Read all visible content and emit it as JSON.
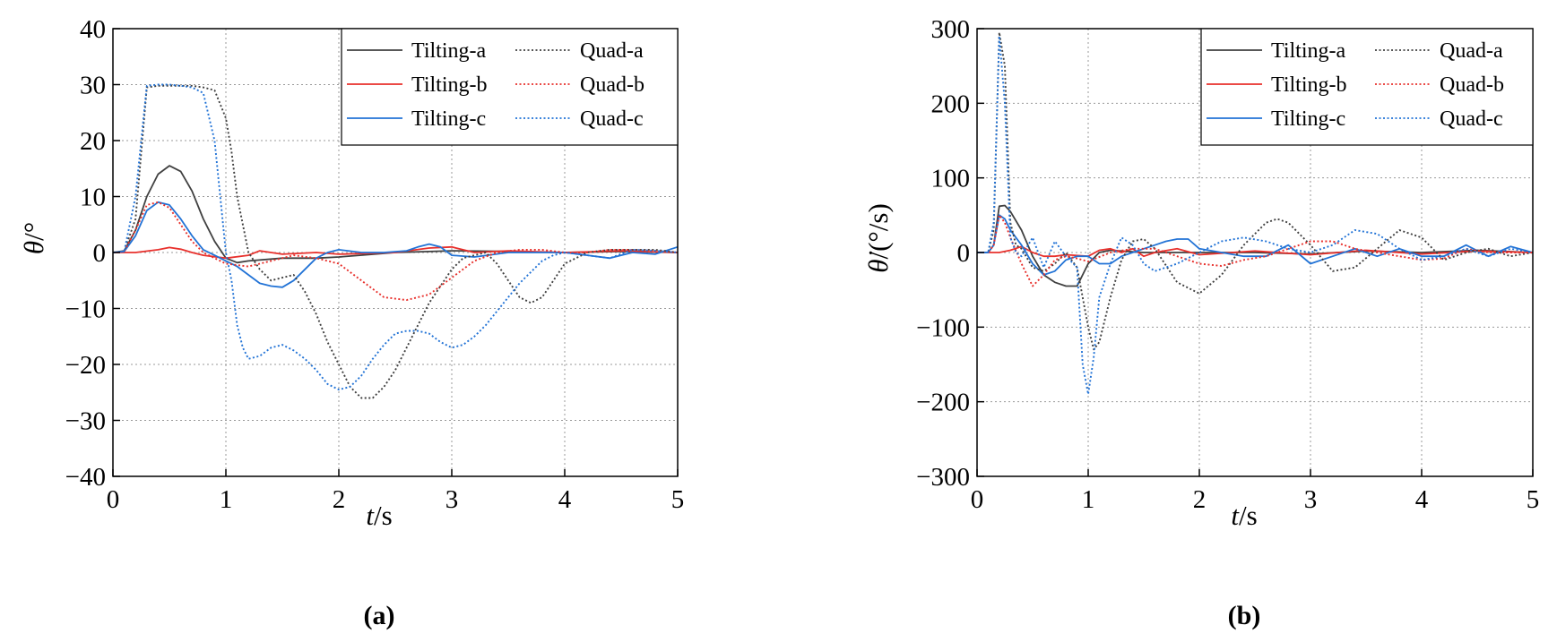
{
  "chart_data": [
    {
      "type": "line",
      "panel_label": "(a)",
      "xlabel_italic": "t",
      "xlabel_unit": "/s",
      "ylabel_italic": "θ",
      "ylabel_unit": "/°",
      "xlim": [
        0,
        5
      ],
      "ylim": [
        -40,
        40
      ],
      "xticks": [
        0,
        1,
        2,
        3,
        4,
        5
      ],
      "yticks": [
        -40,
        -30,
        -20,
        -10,
        0,
        10,
        20,
        30,
        40
      ],
      "ytick_labels": [
        "−40",
        "−30",
        "−20",
        "−10",
        "0",
        "10",
        "20",
        "30",
        "40"
      ],
      "grid": true,
      "legend_position": "top-right",
      "series": [
        {
          "name": "Tilting-a",
          "color": "#404040",
          "dash": "solid",
          "x": [
            0,
            0.1,
            0.2,
            0.3,
            0.4,
            0.5,
            0.6,
            0.7,
            0.8,
            0.9,
            1.0,
            1.1,
            1.2,
            1.5,
            1.8,
            2.0,
            2.5,
            3.0,
            3.5,
            4.0,
            4.5,
            5.0
          ],
          "y": [
            0,
            0.3,
            4,
            10,
            14,
            15.5,
            14.5,
            11,
            6,
            2,
            -1,
            -1.8,
            -1.5,
            -1,
            -1,
            -0.8,
            0,
            0.3,
            0.2,
            0,
            0.2,
            0
          ]
        },
        {
          "name": "Tilting-b",
          "color": "#e8302c",
          "dash": "solid",
          "x": [
            0,
            0.2,
            0.4,
            0.5,
            0.6,
            0.7,
            0.8,
            1.0,
            1.2,
            1.3,
            1.5,
            1.8,
            2.0,
            2.5,
            2.8,
            3.0,
            3.2,
            3.5,
            4.0,
            4.5,
            5.0
          ],
          "y": [
            0,
            0,
            0.5,
            0.9,
            0.6,
            0,
            -0.5,
            -1,
            -0.5,
            0.3,
            -0.3,
            0,
            -0.3,
            0,
            0.8,
            1,
            0,
            0.3,
            0,
            0.3,
            0
          ]
        },
        {
          "name": "Tilting-c",
          "color": "#2273d6",
          "dash": "solid",
          "x": [
            0,
            0.1,
            0.2,
            0.3,
            0.4,
            0.5,
            0.6,
            0.7,
            0.8,
            0.9,
            1.0,
            1.1,
            1.2,
            1.3,
            1.4,
            1.5,
            1.6,
            1.7,
            1.8,
            1.9,
            2.0,
            2.2,
            2.4,
            2.6,
            2.7,
            2.8,
            2.9,
            3.0,
            3.2,
            3.5,
            3.8,
            4.0,
            4.2,
            4.4,
            4.6,
            4.8,
            5.0
          ],
          "y": [
            0,
            0.2,
            3,
            7.5,
            9,
            8.5,
            6,
            3,
            0.5,
            -0.5,
            -1.5,
            -2.5,
            -4,
            -5.5,
            -6,
            -6.2,
            -5,
            -3,
            -1,
            0,
            0.5,
            0,
            0,
            0.3,
            1,
            1.5,
            1,
            -0.5,
            -0.8,
            0,
            0,
            0,
            -0.5,
            -1,
            0,
            -0.3,
            1
          ]
        },
        {
          "name": "Quad-a",
          "color": "#404040",
          "dash": "dot",
          "x": [
            0,
            0.1,
            0.2,
            0.3,
            0.4,
            0.5,
            0.6,
            0.7,
            0.8,
            0.9,
            1.0,
            1.05,
            1.1,
            1.2,
            1.3,
            1.4,
            1.5,
            1.6,
            1.7,
            1.8,
            1.9,
            2.0,
            2.1,
            2.2,
            2.3,
            2.4,
            2.5,
            2.6,
            2.7,
            2.8,
            2.9,
            3.0,
            3.1,
            3.2,
            3.3,
            3.4,
            3.5,
            3.6,
            3.7,
            3.8,
            3.9,
            4.0,
            4.2,
            4.4,
            4.6,
            4.8,
            5.0
          ],
          "y": [
            0,
            0.2,
            6,
            29.5,
            29.8,
            29.8,
            29.8,
            29.8,
            29.5,
            29,
            24,
            18,
            10,
            0,
            -3,
            -5,
            -4.5,
            -4,
            -7,
            -11,
            -16,
            -20,
            -24,
            -26,
            -26,
            -24,
            -21,
            -17,
            -13,
            -9,
            -6,
            -3,
            -1,
            -0.5,
            0,
            -2,
            -5,
            -8,
            -9,
            -8,
            -5,
            -2,
            0,
            0.5,
            0.5,
            0.5,
            0
          ]
        },
        {
          "name": "Quad-b",
          "color": "#e8302c",
          "dash": "dot",
          "x": [
            0,
            0.1,
            0.2,
            0.3,
            0.4,
            0.5,
            0.6,
            0.7,
            0.8,
            0.9,
            1.0,
            1.2,
            1.4,
            1.6,
            1.8,
            2.0,
            2.2,
            2.4,
            2.6,
            2.8,
            3.0,
            3.2,
            3.4,
            3.6,
            3.8,
            4.0,
            4.2,
            4.4,
            4.6,
            4.8,
            5.0
          ],
          "y": [
            0,
            0.2,
            4,
            8.5,
            9,
            8,
            5,
            2,
            0,
            -1,
            -2,
            -2.5,
            -1.5,
            -0.5,
            -1,
            -2,
            -5,
            -8,
            -8.5,
            -7.5,
            -4.5,
            -1.5,
            0,
            0.5,
            0.5,
            0,
            0,
            0.5,
            0.5,
            0.3,
            0
          ]
        },
        {
          "name": "Quad-c",
          "color": "#2273d6",
          "dash": "dot",
          "x": [
            0,
            0.1,
            0.2,
            0.3,
            0.4,
            0.5,
            0.6,
            0.7,
            0.8,
            0.9,
            1.0,
            1.05,
            1.1,
            1.15,
            1.2,
            1.3,
            1.4,
            1.5,
            1.6,
            1.7,
            1.8,
            1.9,
            2.0,
            2.1,
            2.2,
            2.3,
            2.4,
            2.5,
            2.6,
            2.7,
            2.8,
            2.9,
            3.0,
            3.1,
            3.2,
            3.3,
            3.4,
            3.5,
            3.6,
            3.7,
            3.8,
            3.9,
            4.0,
            4.2,
            4.4,
            4.6,
            4.8,
            5.0
          ],
          "y": [
            0,
            0.2,
            10,
            29.8,
            30,
            30,
            29.8,
            29.5,
            28.5,
            20,
            0,
            -5,
            -13,
            -17,
            -19,
            -18.5,
            -17,
            -16.5,
            -17.5,
            -19,
            -21,
            -23.5,
            -24.5,
            -24,
            -22,
            -19,
            -16.5,
            -14.5,
            -14,
            -14,
            -14.5,
            -16,
            -17,
            -16.5,
            -15,
            -13,
            -10.5,
            -8,
            -5.5,
            -3.5,
            -1.5,
            -0.5,
            0,
            -0.5,
            -1,
            0.5,
            0.3,
            0
          ]
        }
      ]
    },
    {
      "type": "line",
      "panel_label": "(b)",
      "xlabel_italic": "t",
      "xlabel_unit": "/s",
      "ylabel_italic": "θ̇",
      "ylabel_unit": "/(°/s)",
      "xlim": [
        0,
        5
      ],
      "ylim": [
        -300,
        300
      ],
      "xticks": [
        0,
        1,
        2,
        3,
        4,
        5
      ],
      "yticks": [
        -300,
        -200,
        -100,
        0,
        100,
        200,
        300
      ],
      "ytick_labels": [
        "−300",
        "−200",
        "−100",
        "0",
        "100",
        "200",
        "300"
      ],
      "grid": true,
      "legend_position": "top-right",
      "series": [
        {
          "name": "Tilting-a",
          "color": "#404040",
          "dash": "solid",
          "x": [
            0,
            0.1,
            0.15,
            0.2,
            0.25,
            0.3,
            0.4,
            0.5,
            0.6,
            0.7,
            0.8,
            0.9,
            1.0,
            1.1,
            1.2,
            1.5,
            2.0,
            2.5,
            3.0,
            3.5,
            4.0,
            4.5,
            5.0
          ],
          "y": [
            0,
            0,
            10,
            62,
            63,
            55,
            30,
            -5,
            -30,
            -40,
            -45,
            -45,
            -15,
            0,
            3,
            0,
            0,
            0,
            -2,
            2,
            0,
            3,
            0
          ]
        },
        {
          "name": "Tilting-b",
          "color": "#e8302c",
          "dash": "solid",
          "x": [
            0,
            0.2,
            0.3,
            0.4,
            0.5,
            0.6,
            0.7,
            0.8,
            1.0,
            1.1,
            1.2,
            1.3,
            1.4,
            1.5,
            1.6,
            1.8,
            2.0,
            2.5,
            3.0,
            3.5,
            4.0,
            4.5,
            5.0
          ],
          "y": [
            0,
            0,
            3,
            8,
            0,
            -5,
            -5,
            -3,
            -5,
            3,
            5,
            0,
            5,
            -5,
            0,
            5,
            -3,
            2,
            -3,
            3,
            -2,
            2,
            0
          ]
        },
        {
          "name": "Tilting-c",
          "color": "#2273d6",
          "dash": "solid",
          "x": [
            0,
            0.1,
            0.15,
            0.2,
            0.25,
            0.3,
            0.4,
            0.5,
            0.6,
            0.7,
            0.8,
            0.9,
            1.0,
            1.1,
            1.2,
            1.3,
            1.4,
            1.5,
            1.6,
            1.7,
            1.8,
            1.9,
            2.0,
            2.2,
            2.4,
            2.6,
            2.8,
            3.0,
            3.2,
            3.4,
            3.6,
            3.8,
            4.0,
            4.2,
            4.4,
            4.6,
            4.8,
            5.0
          ],
          "y": [
            0,
            0,
            10,
            50,
            45,
            30,
            10,
            -15,
            -30,
            -25,
            -10,
            -5,
            -5,
            -15,
            -15,
            -5,
            0,
            5,
            10,
            15,
            18,
            18,
            5,
            0,
            -5,
            -5,
            10,
            -15,
            -5,
            5,
            -5,
            5,
            -5,
            -5,
            10,
            -5,
            8,
            0
          ]
        },
        {
          "name": "Quad-a",
          "color": "#404040",
          "dash": "dot",
          "x": [
            0,
            0.1,
            0.15,
            0.2,
            0.25,
            0.3,
            0.35,
            0.4,
            0.5,
            0.6,
            0.7,
            0.8,
            0.9,
            1.0,
            1.05,
            1.1,
            1.2,
            1.3,
            1.4,
            1.5,
            1.6,
            1.8,
            2.0,
            2.2,
            2.4,
            2.6,
            2.7,
            2.8,
            3.0,
            3.2,
            3.4,
            3.6,
            3.8,
            4.0,
            4.2,
            4.4,
            4.6,
            4.8,
            5.0
          ],
          "y": [
            0,
            0,
            30,
            295,
            250,
            40,
            10,
            5,
            -20,
            -25,
            -15,
            0,
            -20,
            -100,
            -130,
            -120,
            -60,
            -10,
            15,
            18,
            5,
            -40,
            -55,
            -30,
            10,
            40,
            45,
            40,
            10,
            -25,
            -20,
            5,
            30,
            20,
            -10,
            0,
            5,
            -5,
            0
          ]
        },
        {
          "name": "Quad-b",
          "color": "#e8302c",
          "dash": "dot",
          "x": [
            0,
            0.1,
            0.15,
            0.2,
            0.25,
            0.3,
            0.4,
            0.5,
            0.6,
            0.7,
            0.8,
            0.9,
            1.0,
            1.2,
            1.4,
            1.6,
            1.8,
            2.0,
            2.2,
            2.4,
            2.6,
            2.8,
            3.0,
            3.2,
            3.4,
            3.6,
            3.8,
            4.0,
            4.2,
            4.4,
            4.6,
            4.8,
            5.0
          ],
          "y": [
            0,
            0,
            10,
            50,
            40,
            20,
            -15,
            -45,
            -30,
            -10,
            -5,
            -8,
            -12,
            0,
            5,
            5,
            -5,
            -15,
            -18,
            -10,
            -5,
            5,
            15,
            15,
            5,
            0,
            -5,
            -10,
            -8,
            5,
            0,
            0,
            0
          ]
        },
        {
          "name": "Quad-c",
          "color": "#2273d6",
          "dash": "dot",
          "x": [
            0,
            0.1,
            0.15,
            0.2,
            0.25,
            0.3,
            0.35,
            0.4,
            0.5,
            0.6,
            0.7,
            0.8,
            0.9,
            0.95,
            1.0,
            1.05,
            1.1,
            1.2,
            1.3,
            1.4,
            1.5,
            1.6,
            1.8,
            2.0,
            2.2,
            2.4,
            2.6,
            2.8,
            3.0,
            3.2,
            3.4,
            3.6,
            3.8,
            4.0,
            4.2,
            4.4,
            4.6,
            4.8,
            5.0
          ],
          "y": [
            0,
            0,
            40,
            290,
            200,
            20,
            0,
            -5,
            20,
            -20,
            15,
            -5,
            -20,
            -150,
            -190,
            -140,
            -60,
            -15,
            20,
            10,
            -15,
            -25,
            -15,
            0,
            15,
            20,
            15,
            5,
            0,
            10,
            30,
            25,
            5,
            -10,
            -5,
            5,
            -5,
            5,
            0
          ]
        }
      ]
    }
  ]
}
